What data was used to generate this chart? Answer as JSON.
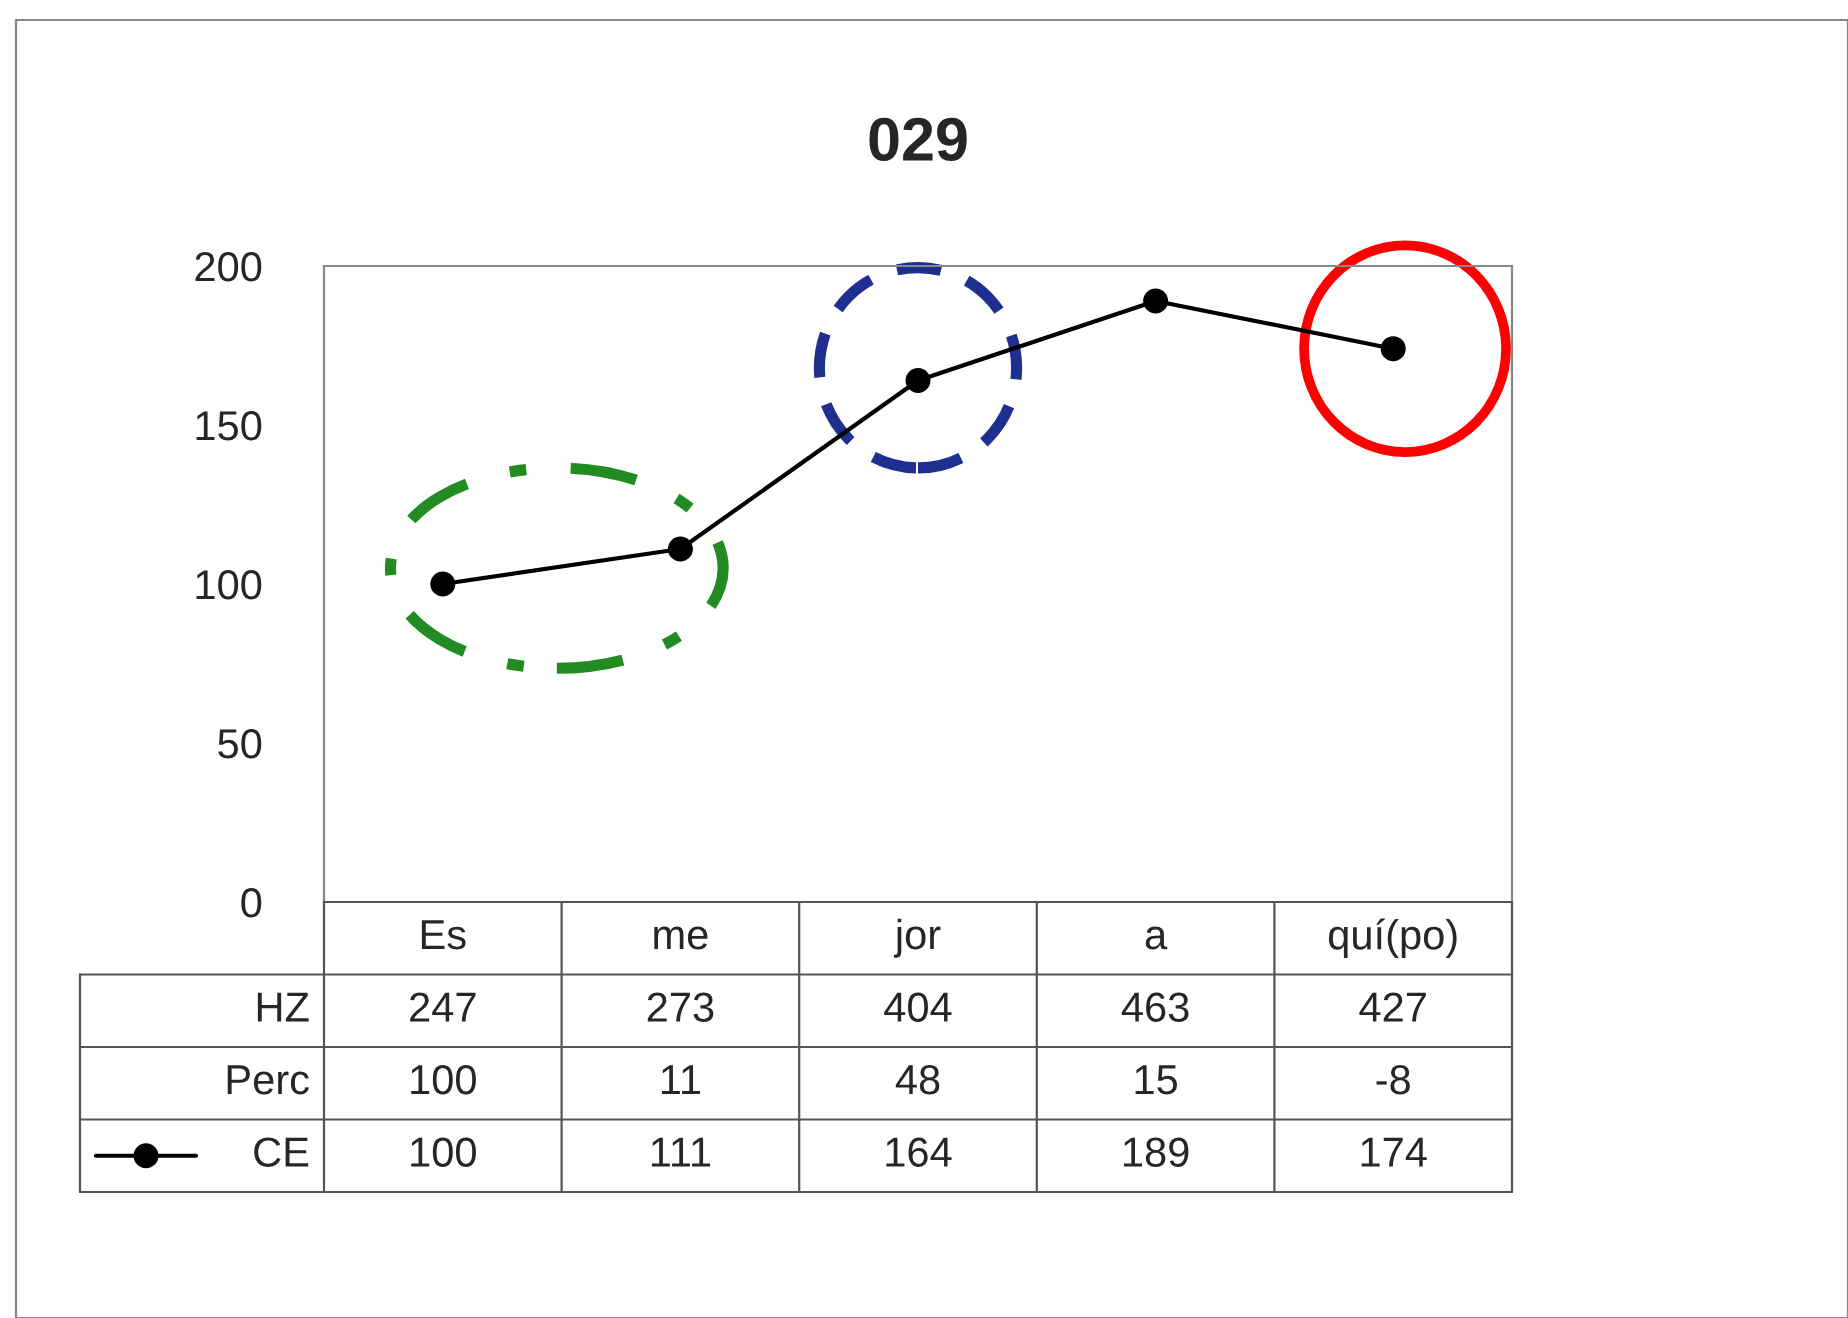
{
  "chart_data": {
    "type": "line",
    "title": "029",
    "categories": [
      "Es",
      "me",
      "jor",
      "a",
      "quí(po)"
    ],
    "series": [
      {
        "name": "CE",
        "color": "#000000",
        "values": [
          100,
          111,
          164,
          189,
          174
        ]
      }
    ],
    "annotations": [
      "HZ",
      "247",
      "273",
      "404",
      "463",
      "427",
      "Perc",
      "100",
      "11",
      "48",
      "15",
      "-8"
    ],
    "ylim": [
      0,
      200
    ],
    "yticks": [
      0,
      50,
      100,
      150,
      200
    ],
    "marker": "circle",
    "line_style": "solid",
    "grid": false,
    "data_labels": true
  }
}
